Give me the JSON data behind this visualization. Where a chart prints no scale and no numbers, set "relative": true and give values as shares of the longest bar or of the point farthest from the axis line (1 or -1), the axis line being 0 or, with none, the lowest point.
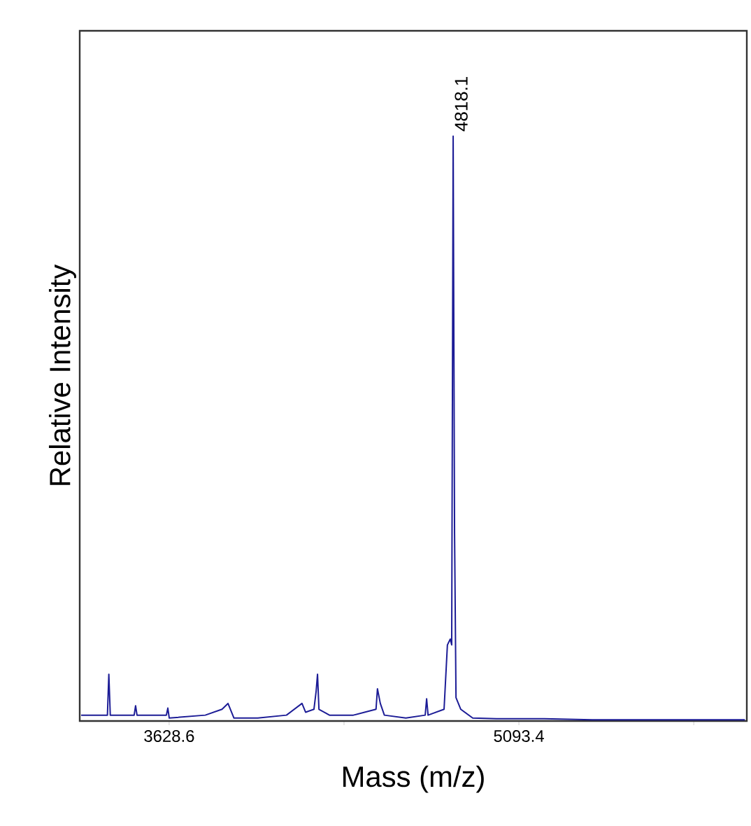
{
  "chart_data": {
    "type": "line",
    "relative": true,
    "color": "#1c1c96",
    "xlabel": "Mass (m/z)",
    "ylabel": "Relative Intensity",
    "xlim": [
      3254,
      6048
    ],
    "xticks": [
      3628.6,
      {
        "value": 4361.0,
        "label": null
      },
      5093.4,
      {
        "value": 5825.8,
        "label": null
      }
    ],
    "x": [
      3260,
      3370,
      3376,
      3382,
      3482,
      3488,
      3494,
      3617,
      3623,
      3629,
      3780,
      3850,
      3875,
      3900,
      4000,
      4120,
      4185,
      4200,
      4235,
      4244,
      4250,
      4256,
      4300,
      4400,
      4495,
      4501,
      4513,
      4530,
      4620,
      4701,
      4707,
      4713,
      4780,
      4794,
      4806,
      4812,
      4818.1,
      4824,
      4830,
      4850,
      4900,
      5000,
      5200,
      5400,
      5800,
      6040
    ],
    "values": [
      0.01,
      0.01,
      0.08,
      0.01,
      0.01,
      0.026,
      0.01,
      0.01,
      0.022,
      0.005,
      0.01,
      0.02,
      0.03,
      0.005,
      0.005,
      0.01,
      0.03,
      0.015,
      0.02,
      0.05,
      0.08,
      0.02,
      0.01,
      0.01,
      0.02,
      0.055,
      0.03,
      0.01,
      0.005,
      0.01,
      0.038,
      0.01,
      0.02,
      0.13,
      0.14,
      0.13,
      1.0,
      0.32,
      0.04,
      0.02,
      0.005,
      0.004,
      0.004,
      0.002,
      0.002,
      0.002
    ],
    "annotations": [
      {
        "text": "4818.1",
        "x": 4818.1,
        "y": 1.0
      }
    ]
  }
}
